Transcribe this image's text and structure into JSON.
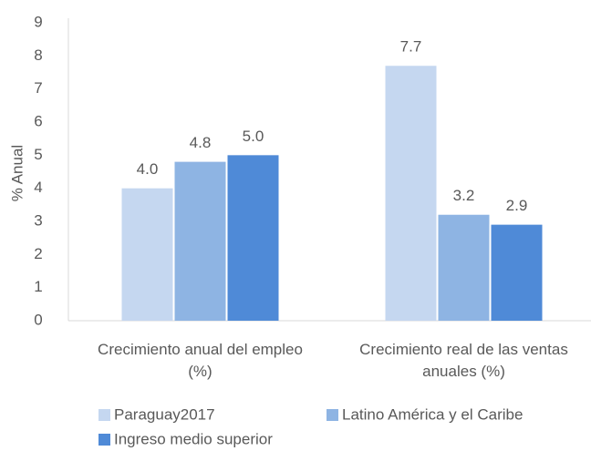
{
  "chart_data": {
    "type": "bar",
    "y_label": "% Anual",
    "categories": [
      "Crecimiento anual del empleo (%)",
      "Crecimiento real de las ventas anuales (%)"
    ],
    "series": [
      {
        "name": "Paraguay2017",
        "color": "#c5d7f0",
        "values": [
          4.0,
          7.7
        ],
        "value_labels": [
          "4.0",
          "7.7"
        ]
      },
      {
        "name": "Latino América y el Caribe",
        "color": "#8eb4e3",
        "values": [
          4.8,
          3.2
        ],
        "value_labels": [
          "4.8",
          "3.2"
        ]
      },
      {
        "name": "Ingreso medio superior",
        "color": "#4f8ad7",
        "values": [
          5.0,
          2.9
        ],
        "value_labels": [
          "5.0",
          "2.9"
        ]
      }
    ],
    "ylim": [
      0,
      9
    ],
    "yticks": [
      0,
      1,
      2,
      3,
      4,
      5,
      6,
      7,
      8,
      9
    ],
    "grid": false,
    "legend": "bottom"
  }
}
